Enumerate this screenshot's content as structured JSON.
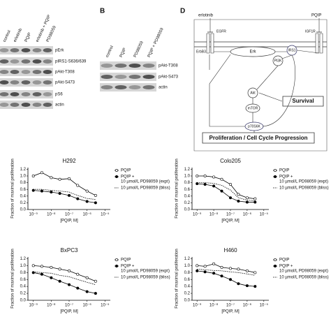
{
  "panel_a": {
    "columns": [
      "control",
      "erlotinib",
      "PQIP",
      "erlotinib + PQIP",
      "PD98059"
    ],
    "rows": [
      "pErk",
      "pIRS1-S636/639",
      "pAkt-T308",
      "pAkt-S473",
      "pS6",
      "actin"
    ]
  },
  "panel_b": {
    "label": "B",
    "columns": [
      "control",
      "PQIP",
      "PD98059",
      "PQIP + PD98059"
    ],
    "rows": [
      "pAkt-T308",
      "pAkt-S473",
      "actin"
    ]
  },
  "panel_d": {
    "label": "D",
    "drugs": {
      "erlotinib": "erlotinib",
      "pqip": "PQIP"
    },
    "receptors": {
      "erbb3": "ErbB3",
      "egfr": "EGFR",
      "igf1r": "IGF1R"
    },
    "nodes": {
      "erk": "Erk",
      "irs1": "IRS1",
      "pi3k": "PI3K",
      "akt": "Akt",
      "mtor": "mTOR",
      "s6k": "p70S6K",
      "survival": "Survival",
      "prolif": "Proliferation / Cell Cycle Progression"
    }
  },
  "chart_data": [
    {
      "type": "dose-response",
      "title": "H292",
      "x_label": "[PQIP, M]",
      "y_label": "Fraction of maximal proliferation",
      "x_scale": "log",
      "x": [
        1e-09,
        3e-09,
        1e-08,
        3e-08,
        1e-07,
        3e-07,
        1e-06,
        3e-06
      ],
      "xlim": [
        5e-10,
        2e-05
      ],
      "xticks": [
        {
          "value": 1e-09,
          "label": "10⁻⁹"
        },
        {
          "value": 1e-08,
          "label": "10⁻⁸"
        },
        {
          "value": 1e-07,
          "label": "10⁻⁷"
        },
        {
          "value": 1e-06,
          "label": "10⁻⁶"
        },
        {
          "value": 1e-05,
          "label": "10⁻⁵"
        }
      ],
      "ylim": [
        0,
        1.25
      ],
      "yticks": [
        {
          "value": 0,
          "label": "0.0"
        },
        0.2,
        0.4,
        0.6,
        0.8,
        {
          "value": 1,
          "label": "1.0"
        },
        1.2
      ],
      "series": [
        {
          "name": [
            "PQIP"
          ],
          "color": "#000",
          "marker": "open",
          "dashed": false,
          "values": [
            1.0,
            1.1,
            0.95,
            0.9,
            0.92,
            0.72,
            0.55,
            0.42
          ]
        },
        {
          "name": [
            "PQIP +",
            "10 µmol/L PD98059 (expt)"
          ],
          "color": "#000",
          "marker": "filled",
          "dashed": false,
          "values": [
            0.57,
            0.55,
            0.52,
            0.48,
            0.42,
            0.32,
            0.24,
            0.2
          ]
        },
        {
          "name": [
            "10 µmol/L PD98059 (bliss)"
          ],
          "color": "#000",
          "marker": "none",
          "dashed": true,
          "values": [
            0.6,
            0.6,
            0.57,
            0.55,
            0.52,
            0.42,
            0.33,
            0.3
          ]
        }
      ]
    },
    {
      "type": "dose-response",
      "title": "Colo205",
      "x_label": "[PQIP, M]",
      "y_label": "Fraction of maximal proliferation",
      "x_scale": "log",
      "x": [
        1e-09,
        3e-09,
        1e-08,
        3e-08,
        1e-07,
        3e-07,
        1e-06,
        3e-06
      ],
      "xlim": [
        5e-10,
        2e-05
      ],
      "xticks": [
        {
          "value": 1e-09,
          "label": "10⁻⁹"
        },
        {
          "value": 1e-08,
          "label": "10⁻⁸"
        },
        {
          "value": 1e-07,
          "label": "10⁻⁷"
        },
        {
          "value": 1e-06,
          "label": "10⁻⁶"
        },
        {
          "value": 1e-05,
          "label": "10⁻⁵"
        }
      ],
      "ylim": [
        0,
        1.25
      ],
      "yticks": [
        {
          "value": 0,
          "label": "0.0"
        },
        0.2,
        0.4,
        0.6,
        0.8,
        {
          "value": 1,
          "label": "1.0"
        },
        1.2
      ],
      "series": [
        {
          "name": [
            "PQIP"
          ],
          "color": "#000",
          "marker": "open",
          "dashed": false,
          "values": [
            1.0,
            1.0,
            0.97,
            0.9,
            0.75,
            0.45,
            0.35,
            0.32
          ]
        },
        {
          "name": [
            "PQIP +",
            "10 µmol/L PD98059 (expt)"
          ],
          "color": "#000",
          "marker": "filled",
          "dashed": false,
          "values": [
            0.77,
            0.75,
            0.7,
            0.55,
            0.35,
            0.25,
            0.22,
            0.22
          ]
        },
        {
          "name": [
            "10 µmol/L PD98059 (bliss)"
          ],
          "color": "#000",
          "marker": "none",
          "dashed": true,
          "values": [
            0.8,
            0.8,
            0.78,
            0.72,
            0.58,
            0.35,
            0.28,
            0.26
          ]
        }
      ]
    },
    {
      "type": "dose-response",
      "title": "BxPC3",
      "x_label": "[PQIP, M]",
      "y_label": "Fraction of maximal proliferation",
      "x_scale": "log",
      "x": [
        1e-09,
        3e-09,
        1e-08,
        3e-08,
        1e-07,
        3e-07,
        1e-06,
        3e-06
      ],
      "xlim": [
        5e-10,
        2e-05
      ],
      "xticks": [
        {
          "value": 1e-09,
          "label": "10⁻⁹"
        },
        {
          "value": 1e-08,
          "label": "10⁻⁸"
        },
        {
          "value": 1e-07,
          "label": "10⁻⁷"
        },
        {
          "value": 1e-06,
          "label": "10⁻⁶"
        },
        {
          "value": 1e-05,
          "label": "10⁻⁵"
        }
      ],
      "ylim": [
        0,
        1.25
      ],
      "yticks": [
        {
          "value": 0,
          "label": "0.0"
        },
        0.2,
        0.4,
        0.6,
        0.8,
        {
          "value": 1,
          "label": "1.0"
        },
        1.2
      ],
      "series": [
        {
          "name": [
            "PQIP"
          ],
          "color": "#000",
          "marker": "open",
          "dashed": false,
          "values": [
            1.0,
            0.98,
            0.95,
            0.9,
            0.85,
            0.75,
            0.65,
            0.55
          ]
        },
        {
          "name": [
            "PQIP +",
            "10 µmol/L PD98059 (expt)"
          ],
          "color": "#000",
          "marker": "filled",
          "dashed": false,
          "values": [
            0.8,
            0.75,
            0.65,
            0.55,
            0.45,
            0.35,
            0.25,
            0.2
          ]
        },
        {
          "name": [
            "10 µmol/L PD98059 (bliss)"
          ],
          "color": "#000",
          "marker": "none",
          "dashed": true,
          "values": [
            0.82,
            0.8,
            0.78,
            0.72,
            0.68,
            0.6,
            0.52,
            0.45
          ]
        }
      ]
    },
    {
      "type": "dose-response",
      "title": "H460",
      "x_label": "[PQIP, M]",
      "y_label": "Fraction of maximal proliferation",
      "x_scale": "log",
      "x": [
        1e-09,
        3e-09,
        1e-08,
        3e-08,
        1e-07,
        3e-07,
        1e-06,
        3e-06
      ],
      "xlim": [
        5e-10,
        2e-05
      ],
      "xticks": [
        {
          "value": 1e-09,
          "label": "10⁻⁹"
        },
        {
          "value": 1e-08,
          "label": "10⁻⁸"
        },
        {
          "value": 1e-07,
          "label": "10⁻⁷"
        },
        {
          "value": 1e-06,
          "label": "10⁻⁶"
        },
        {
          "value": 1e-05,
          "label": "10⁻⁵"
        }
      ],
      "ylim": [
        0,
        1.25
      ],
      "yticks": [
        {
          "value": 0,
          "label": "0.0"
        },
        0.2,
        0.4,
        0.6,
        0.8,
        {
          "value": 1,
          "label": "1.0"
        },
        1.2
      ],
      "series": [
        {
          "name": [
            "PQIP"
          ],
          "color": "#000",
          "marker": "open",
          "dashed": false,
          "values": [
            1.0,
            0.98,
            1.05,
            0.95,
            0.92,
            0.9,
            0.85,
            0.8
          ]
        },
        {
          "name": [
            "PQIP +",
            "10 µmol/L PD98059 (expt)"
          ],
          "color": "#000",
          "marker": "filled",
          "dashed": false,
          "values": [
            0.85,
            0.82,
            0.78,
            0.7,
            0.6,
            0.48,
            0.42,
            0.4
          ]
        },
        {
          "name": [
            "10 µmol/L PD98059 (bliss)"
          ],
          "color": "#000",
          "marker": "none",
          "dashed": true,
          "values": [
            0.9,
            0.88,
            0.86,
            0.85,
            0.82,
            0.8,
            0.76,
            0.72
          ]
        }
      ]
    }
  ]
}
